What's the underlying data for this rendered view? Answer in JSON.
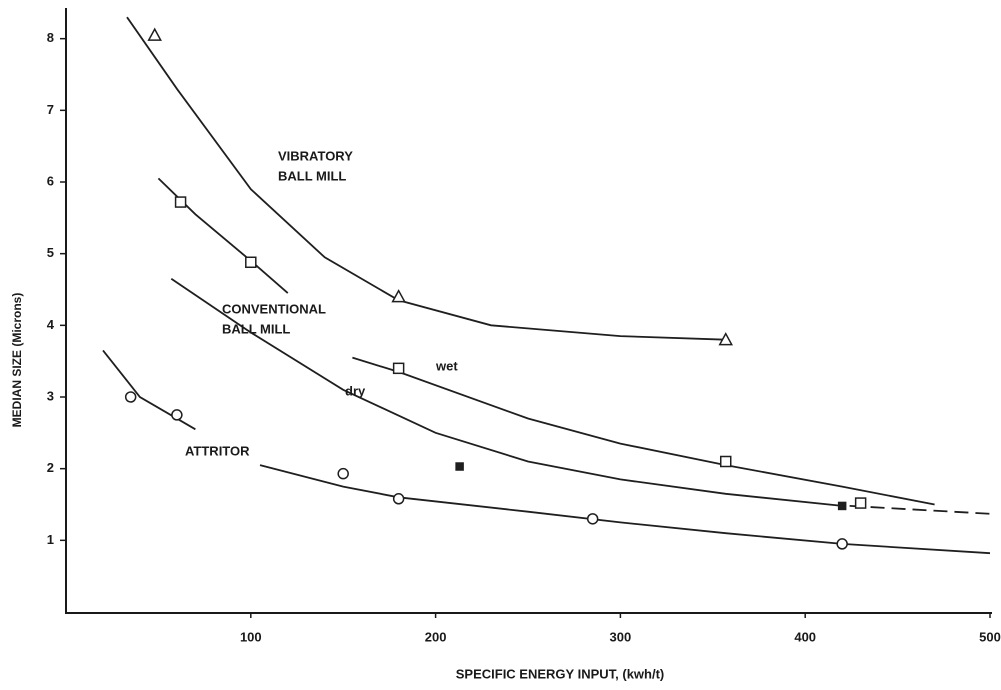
{
  "chart_data": {
    "type": "line",
    "xlabel": "SPECIFIC ENERGY INPUT, (kwh/t)",
    "ylabel": "MEDIAN SIZE (Microns)",
    "xlim": [
      0,
      500
    ],
    "ylim": [
      0,
      8.4
    ],
    "xticks": [
      100,
      200,
      300,
      400,
      500
    ],
    "yticks": [
      1,
      2,
      3,
      4,
      5,
      6,
      7,
      8
    ],
    "annotations": [
      [
        "VIBRATORY",
        "BALL MILL"
      ],
      [
        "CONVENTIONAL",
        "BALL MILL"
      ],
      [
        "ATTRITOR"
      ],
      [
        "wet"
      ],
      [
        "dry"
      ]
    ],
    "curves": [
      {
        "x": [
          33,
          60,
          100,
          140,
          180,
          230,
          300,
          357
        ],
        "values": [
          8.3,
          7.3,
          5.9,
          4.95,
          4.35,
          4.0,
          3.85,
          3.8
        ]
      },
      {
        "x": [
          50,
          70,
          100,
          120
        ],
        "values": [
          6.05,
          5.55,
          4.9,
          4.45
        ]
      },
      {
        "x": [
          155,
          180,
          250,
          300,
          357,
          420,
          470
        ],
        "values": [
          3.55,
          3.35,
          2.7,
          2.35,
          2.05,
          1.75,
          1.5
        ]
      },
      {
        "x": [
          57,
          100,
          150,
          200,
          250,
          300,
          357,
          420
        ],
        "values": [
          4.65,
          3.9,
          3.1,
          2.5,
          2.1,
          1.85,
          1.65,
          1.48
        ]
      },
      {
        "x": [
          424,
          500
        ],
        "values": [
          1.48,
          1.37
        ],
        "dashed": true
      },
      {
        "x": [
          20,
          40,
          70
        ],
        "values": [
          3.65,
          3.0,
          2.55
        ]
      },
      {
        "x": [
          105,
          150,
          180,
          250,
          300,
          357,
          420,
          500
        ],
        "values": [
          2.05,
          1.75,
          1.6,
          1.4,
          1.25,
          1.1,
          0.95,
          0.82
        ]
      }
    ],
    "series": [
      {
        "marker": "triangle",
        "x": [
          48,
          180,
          357
        ],
        "values": [
          8.05,
          4.4,
          3.8
        ]
      },
      {
        "marker": "square",
        "x": [
          62,
          100,
          180,
          357,
          430
        ],
        "values": [
          5.72,
          4.88,
          3.4,
          2.1,
          1.52
        ]
      },
      {
        "marker": "filled-square",
        "x": [
          213,
          420
        ],
        "values": [
          2.03,
          1.48
        ]
      },
      {
        "marker": "circle",
        "x": [
          35,
          60,
          150,
          180,
          285,
          420
        ],
        "values": [
          3.0,
          2.75,
          1.93,
          1.58,
          1.3,
          0.95
        ]
      }
    ]
  }
}
